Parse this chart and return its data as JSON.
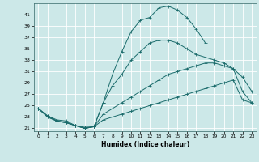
{
  "xlabel": "Humidex (Indice chaleur)",
  "bg_color": "#cce8e8",
  "grid_color": "#ffffff",
  "line_color": "#1a6b6b",
  "xlim": [
    -0.5,
    23.5
  ],
  "ylim": [
    20.5,
    43
  ],
  "xticks": [
    0,
    1,
    2,
    3,
    4,
    5,
    6,
    7,
    8,
    9,
    10,
    11,
    12,
    13,
    14,
    15,
    16,
    17,
    18,
    19,
    20,
    21,
    22,
    23
  ],
  "yticks": [
    21,
    23,
    25,
    27,
    29,
    31,
    33,
    35,
    37,
    39,
    41
  ],
  "series1": [
    24.5,
    23.2,
    22.5,
    22.3,
    21.5,
    21.2,
    21.3,
    25.5,
    30.5,
    34.5,
    38.0,
    40.0,
    40.5,
    42.2,
    42.5,
    41.8,
    40.5,
    38.5,
    36.0,
    null,
    null,
    null,
    null,
    null
  ],
  "series2": [
    24.5,
    23.2,
    22.3,
    22.0,
    21.5,
    21.0,
    21.3,
    25.5,
    28.5,
    30.5,
    33.0,
    34.5,
    36.0,
    36.5,
    36.5,
    36.0,
    35.0,
    34.0,
    33.5,
    33.0,
    32.5,
    31.5,
    30.0,
    27.5
  ],
  "series3": [
    24.5,
    23.0,
    22.3,
    22.0,
    21.5,
    21.0,
    21.3,
    23.5,
    24.5,
    25.5,
    26.5,
    27.5,
    28.5,
    29.5,
    30.5,
    31.0,
    31.5,
    32.0,
    32.5,
    32.5,
    32.0,
    31.5,
    27.5,
    25.5
  ],
  "series4": [
    24.5,
    23.0,
    22.3,
    22.0,
    21.5,
    21.0,
    21.3,
    22.5,
    23.0,
    23.5,
    24.0,
    24.5,
    25.0,
    25.5,
    26.0,
    26.5,
    27.0,
    27.5,
    28.0,
    28.5,
    29.0,
    29.5,
    26.0,
    25.5
  ]
}
